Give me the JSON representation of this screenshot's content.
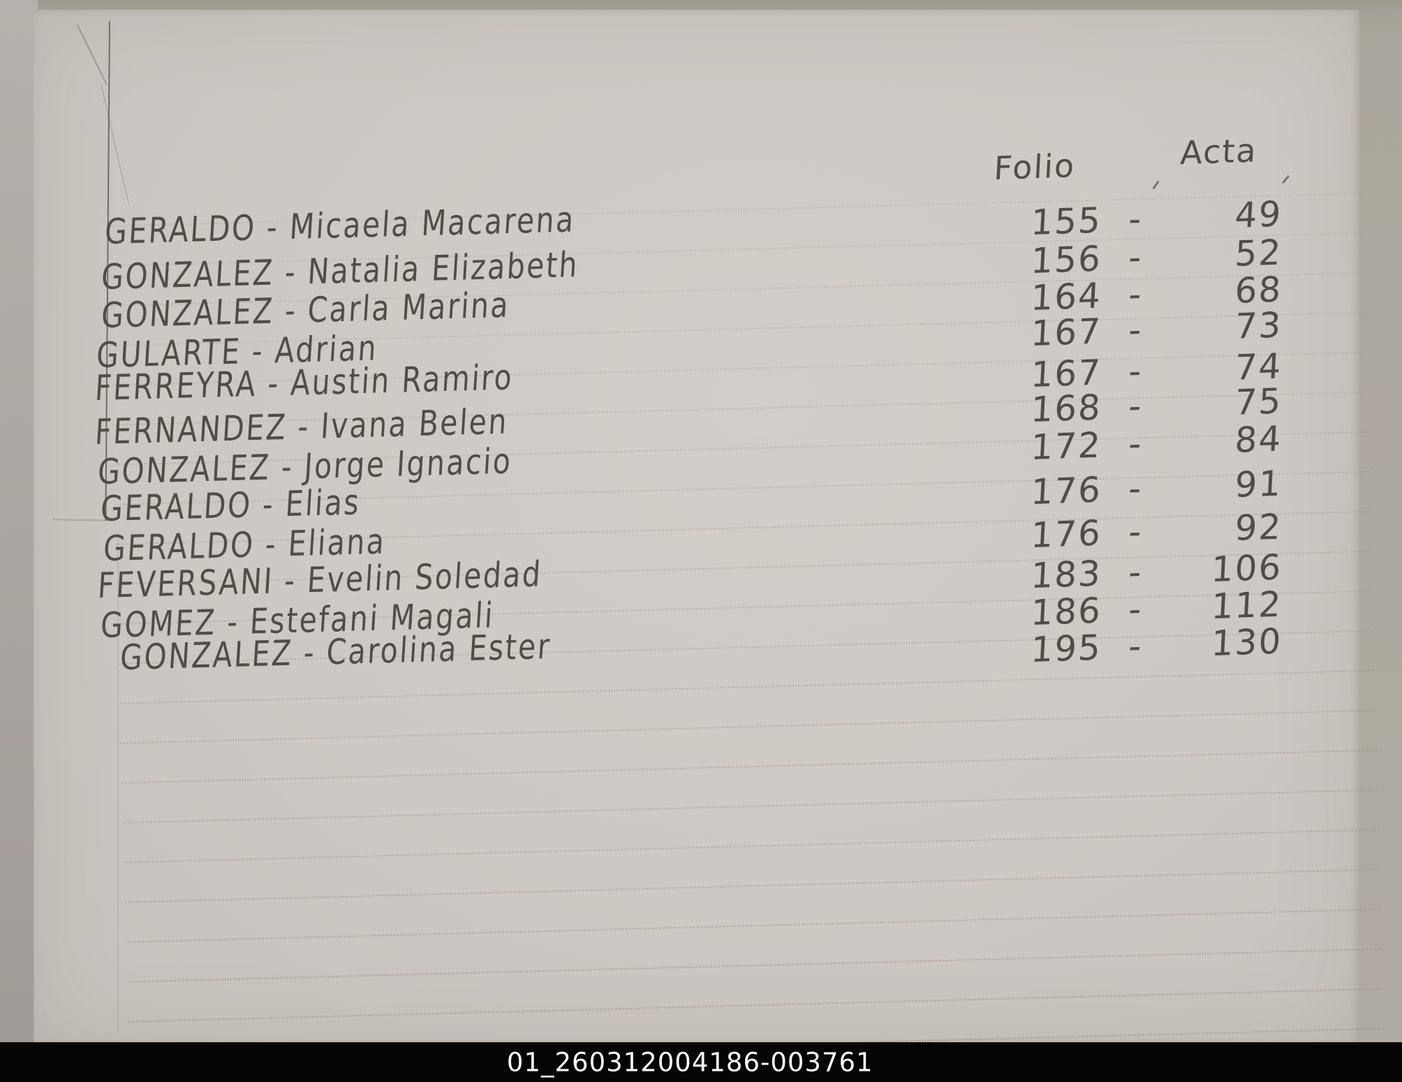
{
  "document": {
    "kind": "handwritten registry index page",
    "columns": {
      "folio_label": "Folio",
      "acta_label": "Acta"
    },
    "separator": "-",
    "entries": [
      {
        "name": "GERALDO - Micaela Macarena",
        "folio": "155",
        "acta": "49"
      },
      {
        "name": "GONZALEZ - Natalia Elizabeth",
        "folio": "156",
        "acta": "52"
      },
      {
        "name": "GONZALEZ - Carla Marina",
        "folio": "164",
        "acta": "68"
      },
      {
        "name": "GULARTE - Adrian",
        "folio": "167",
        "acta": "73"
      },
      {
        "name": "FERREYRA - Austin Ramiro",
        "folio": "167",
        "acta": "74"
      },
      {
        "name": "FERNANDEZ - Ivana Belen",
        "folio": "168",
        "acta": "75"
      },
      {
        "name": "GONZALEZ - Jorge Ignacio",
        "folio": "172",
        "acta": "84"
      },
      {
        "name": "GERALDO - Elias",
        "folio": "176",
        "acta": "91"
      },
      {
        "name": "GERALDO - Eliana",
        "folio": "176",
        "acta": "92"
      },
      {
        "name": "FEVERSANI - Evelin Soledad",
        "folio": "183",
        "acta": "106"
      },
      {
        "name": "GOMEZ - Estefani Magali",
        "folio": "186",
        "acta": "112"
      },
      {
        "name": "GONZALEZ - Carolina Ester",
        "folio": "195",
        "acta": "130"
      }
    ],
    "caption": "01_260312004186-003761"
  }
}
